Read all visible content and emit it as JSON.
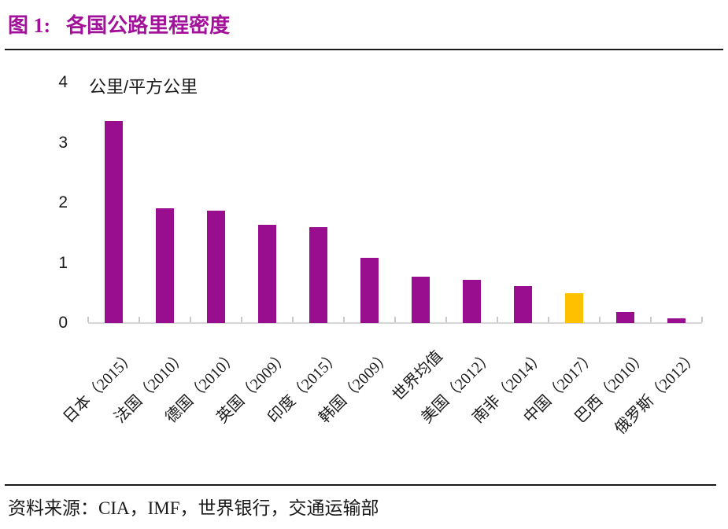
{
  "figure": {
    "title_label": "图 1:",
    "title_text": "各国公路里程密度",
    "source_text": "资料来源：CIA，IMF，世界银行，交通运输部"
  },
  "chart_data": {
    "type": "bar",
    "title": "各国公路里程密度",
    "unit_label": "公里/平方公里",
    "categories": [
      "日本（2015）",
      "法国（2010）",
      "德国（2010）",
      "英国（2009）",
      "印度（2015）",
      "韩国（2009）",
      "世界均值",
      "美国（2012）",
      "南非（2014）",
      "中国（2017）",
      "巴西（2010）",
      "俄罗斯（2012）"
    ],
    "values": [
      3.36,
      1.91,
      1.87,
      1.64,
      1.59,
      1.08,
      0.77,
      0.72,
      0.61,
      0.5,
      0.18,
      0.08
    ],
    "xlabel": "",
    "ylabel": "公里/平方公里",
    "ylim": [
      0,
      4
    ],
    "yticks": [
      0,
      1,
      2,
      3,
      4
    ],
    "grid": false,
    "legend": "none",
    "bar_color_default": "#990E8E",
    "bar_color_highlight": "#FFC000",
    "highlight_index": 9,
    "axis_line_color": "#D6D6D6"
  },
  "colors": {
    "title": "#A2119A",
    "text": "#1A1A1A",
    "rule": "#1A1A1A"
  }
}
